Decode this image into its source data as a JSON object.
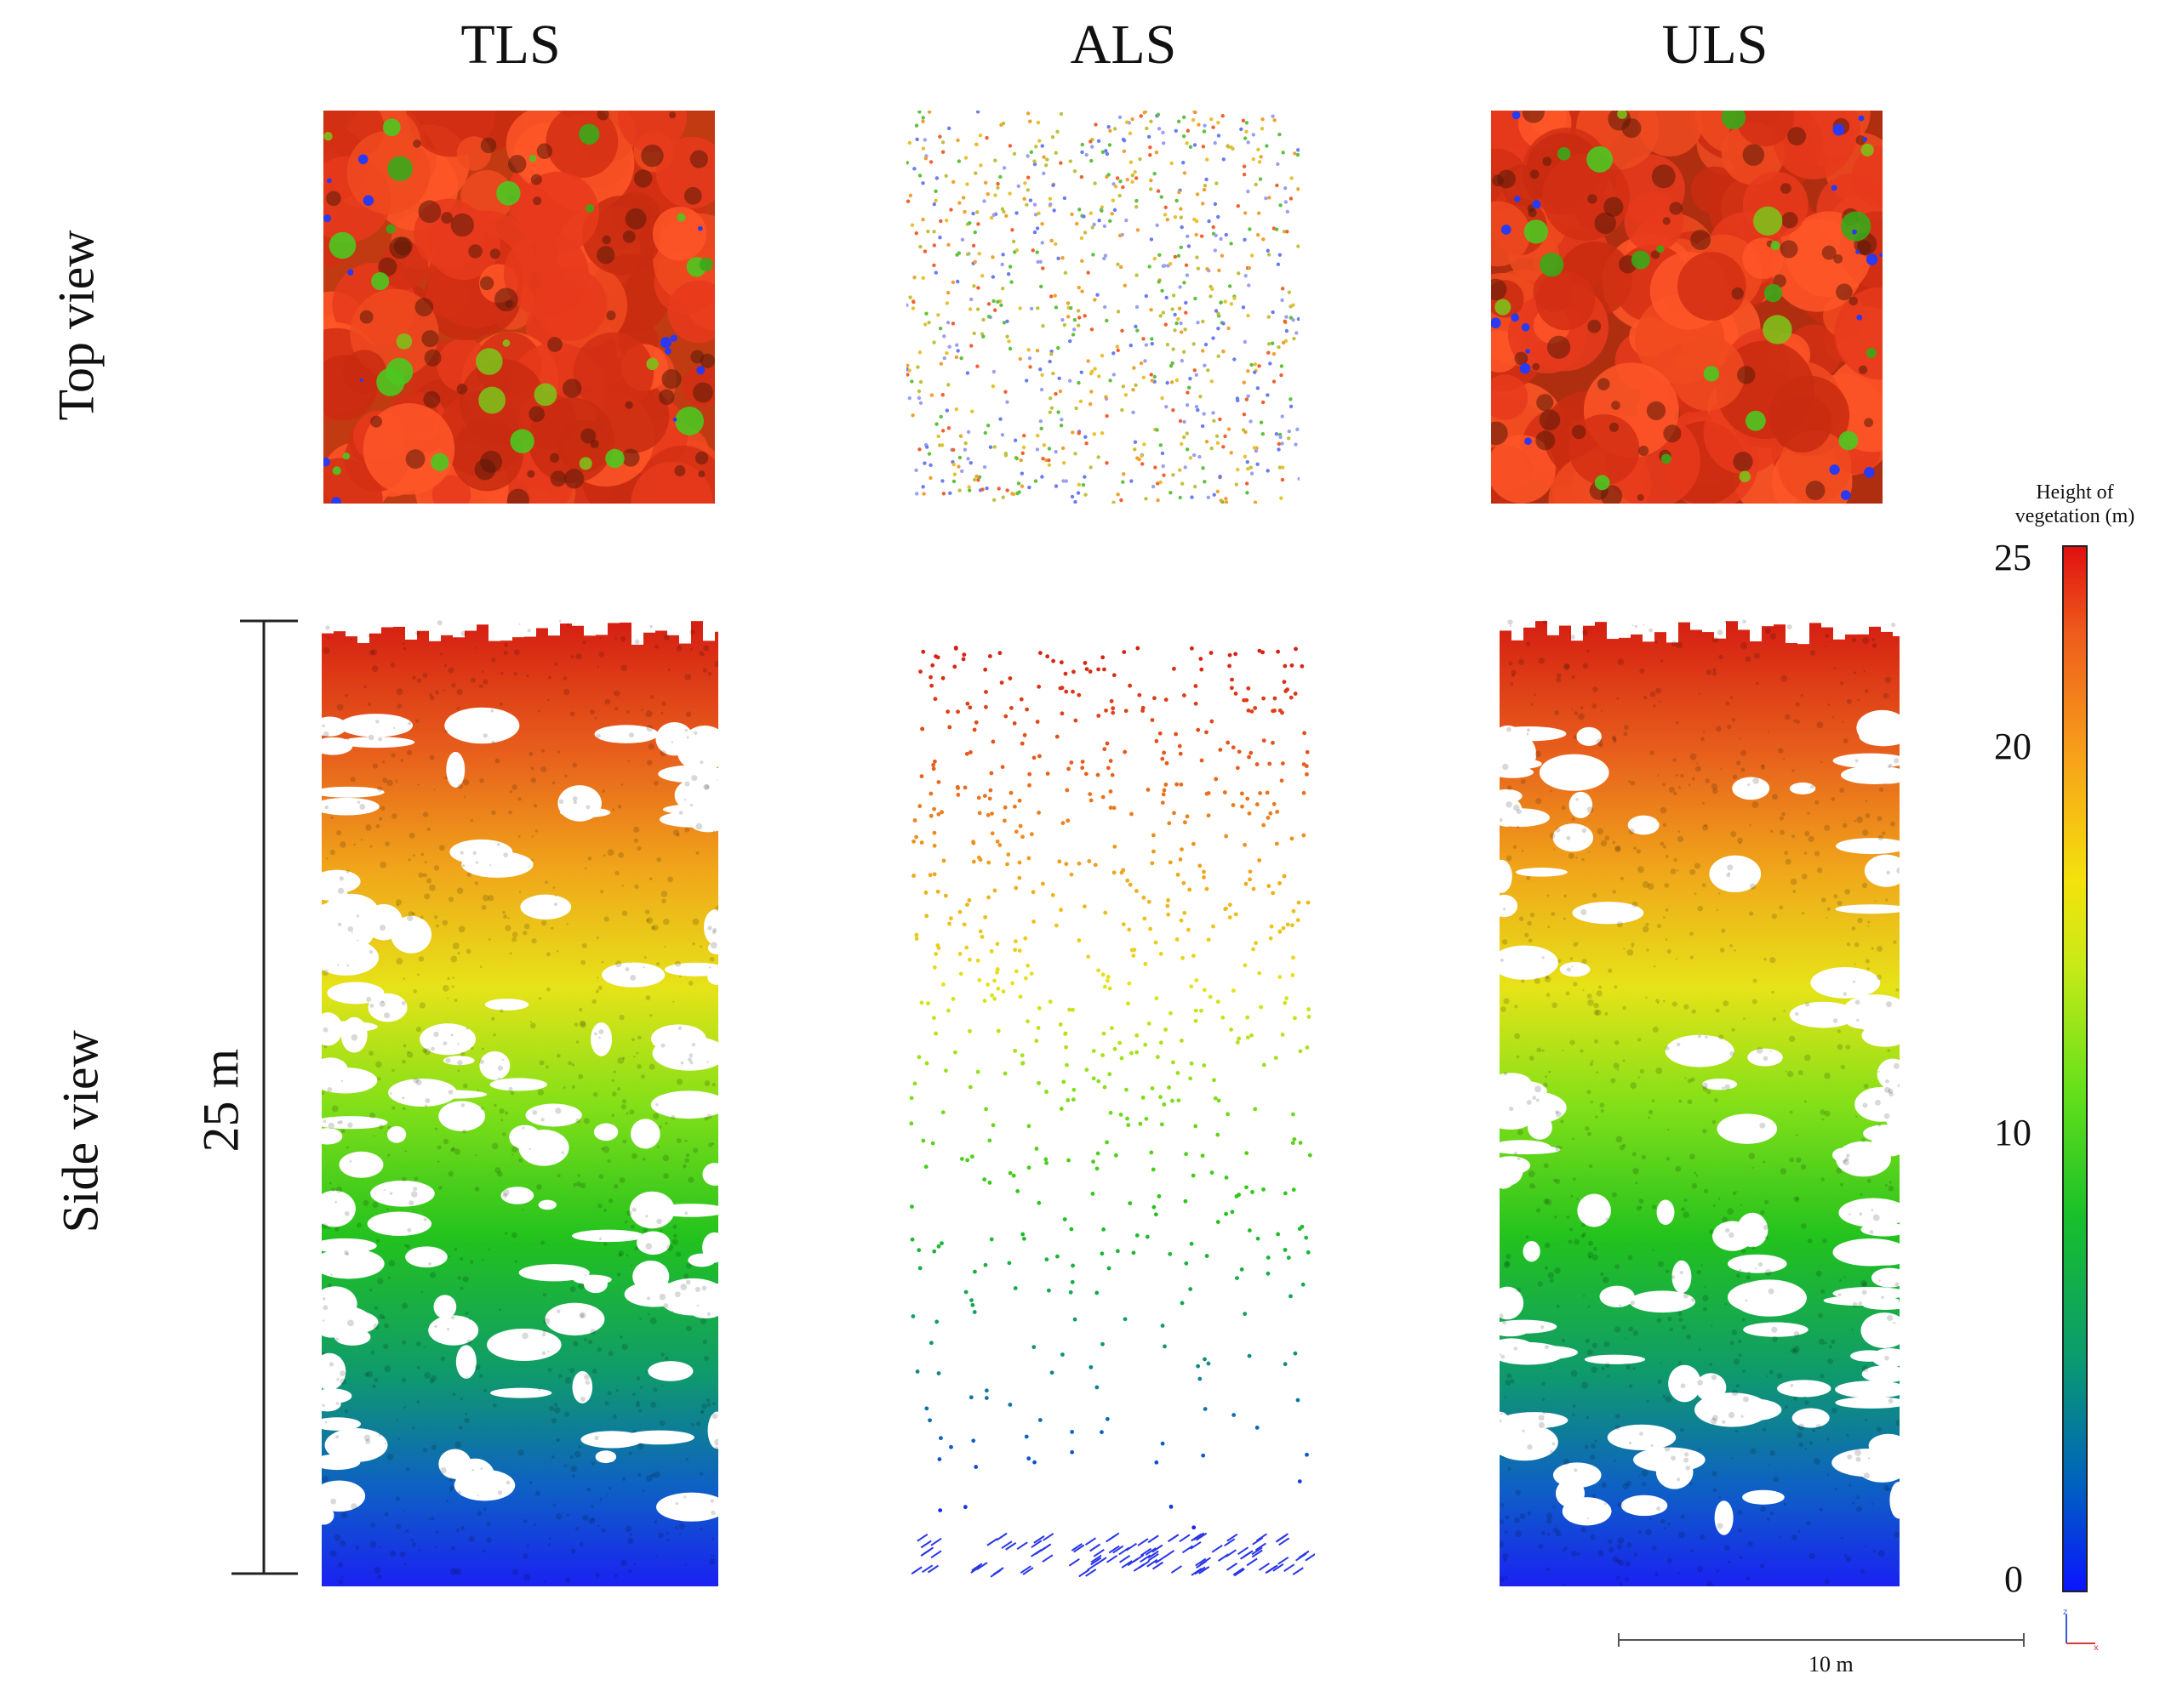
{
  "columns": [
    "TLS",
    "ALS",
    "ULS"
  ],
  "rows": {
    "top": "Top view",
    "side": "Side view"
  },
  "height_scale_label": "25 m",
  "horizontal_scale_label": "10 m",
  "legend": {
    "title_line1": "Height of",
    "title_line2": "vegetation (m)",
    "ticks": [
      "25",
      "20",
      "10",
      "0"
    ]
  },
  "colors": {
    "canopy_red": "#e8351a",
    "mid_yellow": "#f2e21a",
    "mid_green": "#2fc21a",
    "ground_blue": "#1a2af0"
  }
}
